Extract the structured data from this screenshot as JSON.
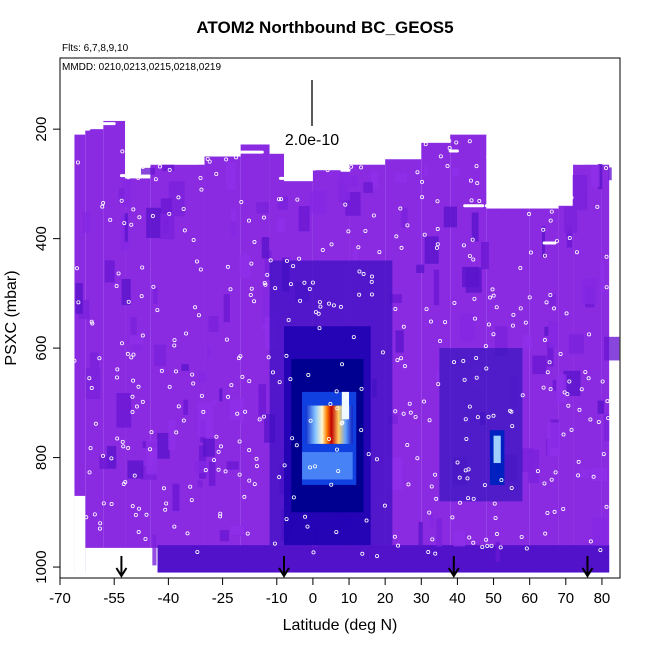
{
  "chart_data": {
    "type": "heatmap",
    "title": "ATOM2 Northbound BC_GEOS5",
    "notes": {
      "flights": "Flts: 6,7,8,9,10",
      "dates": "MMDD: 0210,0213,0215,0218,0219"
    },
    "scale_bar_label": "2.0e-10",
    "xlabel": "Latitude (deg N)",
    "ylabel": "PSXC (mbar)",
    "xlim": [
      -70,
      85
    ],
    "ylim": [
      1020,
      70
    ],
    "x_ticks": [
      -70,
      -55,
      -40,
      -25,
      -10,
      0,
      10,
      20,
      30,
      40,
      50,
      60,
      70,
      80
    ],
    "y_ticks": [
      200,
      400,
      600,
      800,
      1000
    ],
    "profile_latitudes": [
      -53,
      -8,
      39,
      76
    ],
    "hotspot": {
      "lat": 2,
      "pressure": 725
    },
    "colors": {
      "background_field": "#8a2be2",
      "low": "#6a1ad8",
      "mid": "#0000c8",
      "high": "#ffffff",
      "peak": "#d01010",
      "obs_points": "#ffffff",
      "arrows": "#000000"
    }
  }
}
